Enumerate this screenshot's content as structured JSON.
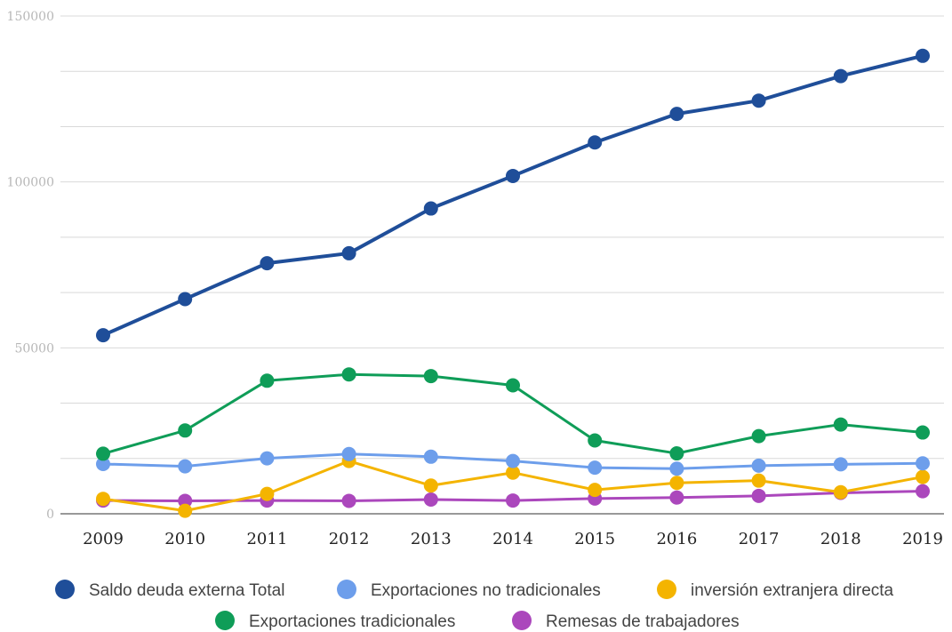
{
  "chart_data": {
    "type": "line",
    "categories": [
      "2009",
      "2010",
      "2011",
      "2012",
      "2013",
      "2014",
      "2015",
      "2016",
      "2017",
      "2018",
      "2019"
    ],
    "ylim": [
      0,
      150000
    ],
    "y_ticks": [
      "0",
      "50000",
      "100000",
      "150000"
    ],
    "grid": true,
    "legend_position": "bottom",
    "series": [
      {
        "name": "Saldo deuda externa Total",
        "color": "#1f4e99",
        "values": [
          53800,
          64700,
          75500,
          78500,
          92000,
          101800,
          111900,
          120500,
          124500,
          131900,
          138000
        ]
      },
      {
        "name": "Exportaciones no tradicionales",
        "color": "#6d9eeb",
        "values": [
          15000,
          14300,
          16700,
          18000,
          17200,
          15900,
          13900,
          13600,
          14500,
          14900,
          15200
        ]
      },
      {
        "name": "inversión extranjera directa",
        "color": "#f4b400",
        "values": [
          4500,
          900,
          6000,
          15900,
          8500,
          12400,
          7200,
          9300,
          10000,
          6500,
          11100
        ]
      },
      {
        "name": "Exportaciones tradicionales",
        "color": "#0f9d58",
        "values": [
          18100,
          25100,
          40100,
          42000,
          41500,
          38700,
          22100,
          18200,
          23400,
          26900,
          24500
        ]
      },
      {
        "name": "Remesas de trabajadores",
        "color": "#ab47bc",
        "values": [
          4000,
          3900,
          4000,
          3900,
          4300,
          4000,
          4600,
          4900,
          5400,
          6300,
          6800
        ]
      }
    ]
  }
}
